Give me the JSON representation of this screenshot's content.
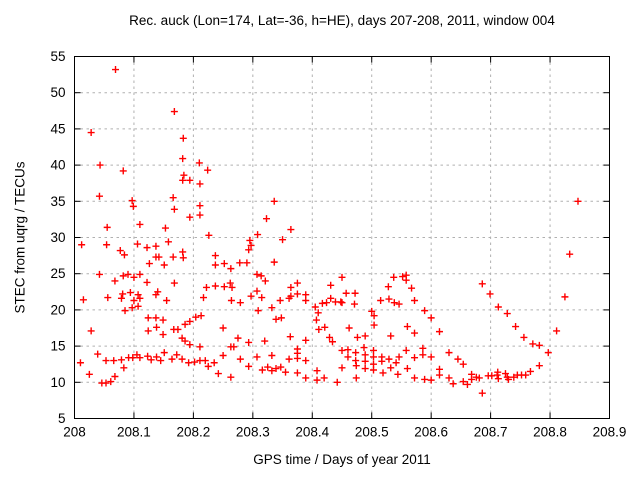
{
  "title": "Rec. auck (Lon=174, Lat=-36, h=HE), days 207-208, 2011, window 004",
  "plot_colors": {
    "background": "#ffffff",
    "frame": "#000000",
    "grid": "#b0b0b0",
    "marker": "#ff0000"
  },
  "chart_data": {
    "type": "scatter",
    "title": "Rec. auck (Lon=174, Lat=-36, h=HE), days 207-208, 2011, window 004",
    "xlabel": "GPS time / Days of year 2011",
    "ylabel": "STEC from uqrg / TECUs",
    "xlim": [
      208,
      208.9
    ],
    "ylim": [
      5,
      55
    ],
    "xticks": [
      208,
      208.1,
      208.2,
      208.3,
      208.4,
      208.5,
      208.6,
      208.7,
      208.8,
      208.9
    ],
    "xtick_labels": [
      "208",
      "208.1",
      "208.2",
      "208.3",
      "208.4",
      "208.5",
      "208.6",
      "208.7",
      "208.8",
      "208.9"
    ],
    "yticks": [
      5,
      10,
      15,
      20,
      25,
      30,
      35,
      40,
      45,
      50,
      55
    ],
    "ytick_labels": [
      "5",
      "10",
      "15",
      "20",
      "25",
      "30",
      "35",
      "40",
      "45",
      "50",
      "55"
    ],
    "grid": true,
    "legend": "none",
    "marker": "plus",
    "series": [
      {
        "name": "STEC",
        "color": "#ff0000",
        "points": [
          [
            208.069,
            53.2
          ],
          [
            208.168,
            47.4
          ],
          [
            208.028,
            44.5
          ],
          [
            208.183,
            43.7
          ],
          [
            208.182,
            40.9
          ],
          [
            208.21,
            40.3
          ],
          [
            208.043,
            40.0
          ],
          [
            208.082,
            39.2
          ],
          [
            208.184,
            38.6
          ],
          [
            208.224,
            39.3
          ],
          [
            208.182,
            37.9
          ],
          [
            208.194,
            37.9
          ],
          [
            208.211,
            37.4
          ],
          [
            208.042,
            35.7
          ],
          [
            208.166,
            35.5
          ],
          [
            208.097,
            35.1
          ],
          [
            208.099,
            34.3
          ],
          [
            208.168,
            33.9
          ],
          [
            208.211,
            34.4
          ],
          [
            208.194,
            32.8
          ],
          [
            208.211,
            33.1
          ],
          [
            208.11,
            31.8
          ],
          [
            208.055,
            31.4
          ],
          [
            208.153,
            31.3
          ],
          [
            208.012,
            29.0
          ],
          [
            208.054,
            29.0
          ],
          [
            208.158,
            29.4
          ],
          [
            208.106,
            29.1
          ],
          [
            208.122,
            28.6
          ],
          [
            208.137,
            28.8
          ],
          [
            208.077,
            28.2
          ],
          [
            208.084,
            27.6
          ],
          [
            208.126,
            26.4
          ],
          [
            208.137,
            27.3
          ],
          [
            208.142,
            27.3
          ],
          [
            208.151,
            26.2
          ],
          [
            208.166,
            27.3
          ],
          [
            208.182,
            28.0
          ],
          [
            208.183,
            27.2
          ],
          [
            208.042,
            24.9
          ],
          [
            208.068,
            24.0
          ],
          [
            208.082,
            24.7
          ],
          [
            208.09,
            24.9
          ],
          [
            208.1,
            24.5
          ],
          [
            208.11,
            24.9
          ],
          [
            208.122,
            23.8
          ],
          [
            208.14,
            22.5
          ],
          [
            208.168,
            23.7
          ],
          [
            208.081,
            22.2
          ],
          [
            208.094,
            22.4
          ],
          [
            208.107,
            22.1
          ],
          [
            208.137,
            22.1
          ],
          [
            208.336,
            35.0
          ],
          [
            208.323,
            32.6
          ],
          [
            208.308,
            30.4
          ],
          [
            208.364,
            31.1
          ],
          [
            208.35,
            29.7
          ],
          [
            208.295,
            29.6
          ],
          [
            208.297,
            28.9
          ],
          [
            208.293,
            28.3
          ],
          [
            208.226,
            30.3
          ],
          [
            208.237,
            27.5
          ],
          [
            208.237,
            26.2
          ],
          [
            208.252,
            26.4
          ],
          [
            208.263,
            25.7
          ],
          [
            208.278,
            26.5
          ],
          [
            208.29,
            26.5
          ],
          [
            208.336,
            26.6
          ],
          [
            208.307,
            24.9
          ],
          [
            208.314,
            24.7
          ],
          [
            208.321,
            24.0
          ],
          [
            208.237,
            23.3
          ],
          [
            208.252,
            23.2
          ],
          [
            208.262,
            23.7
          ],
          [
            208.265,
            23.1
          ],
          [
            208.222,
            23.1
          ],
          [
            208.307,
            22.6
          ],
          [
            208.364,
            23.1
          ],
          [
            208.375,
            23.7
          ],
          [
            208.364,
            21.9
          ],
          [
            208.375,
            22.2
          ],
          [
            208.389,
            22.1
          ],
          [
            208.297,
            21.9
          ],
          [
            208.537,
            24.5
          ],
          [
            208.552,
            24.6
          ],
          [
            208.558,
            24.8
          ],
          [
            208.558,
            24.1
          ],
          [
            208.528,
            23.2
          ],
          [
            208.567,
            23.0
          ],
          [
            208.472,
            22.3
          ],
          [
            208.45,
            24.5
          ],
          [
            208.847,
            35.0
          ],
          [
            208.833,
            27.7
          ],
          [
            208.686,
            23.6
          ],
          [
            208.699,
            22.2
          ],
          [
            208.015,
            21.4
          ],
          [
            208.056,
            21.7
          ],
          [
            208.079,
            21.6
          ],
          [
            208.1,
            21.3
          ],
          [
            208.11,
            21.6
          ],
          [
            208.155,
            21.3
          ],
          [
            208.217,
            21.7
          ],
          [
            208.085,
            19.9
          ],
          [
            208.097,
            20.3
          ],
          [
            208.107,
            20.5
          ],
          [
            208.124,
            18.9
          ],
          [
            208.137,
            18.9
          ],
          [
            208.149,
            18.6
          ],
          [
            208.186,
            18.0
          ],
          [
            208.194,
            18.4
          ],
          [
            208.204,
            19.0
          ],
          [
            208.213,
            19.2
          ],
          [
            208.028,
            17.1
          ],
          [
            208.124,
            17.1
          ],
          [
            208.138,
            17.6
          ],
          [
            208.149,
            16.6
          ],
          [
            208.167,
            17.3
          ],
          [
            208.174,
            17.3
          ],
          [
            208.181,
            16.1
          ],
          [
            208.186,
            15.7
          ],
          [
            208.194,
            15.2
          ],
          [
            208.211,
            14.9
          ],
          [
            208.039,
            13.9
          ],
          [
            208.01,
            12.7
          ],
          [
            208.053,
            13.0
          ],
          [
            208.066,
            13.0
          ],
          [
            208.079,
            13.1
          ],
          [
            208.083,
            12.0
          ],
          [
            208.091,
            13.4
          ],
          [
            208.098,
            13.4
          ],
          [
            208.105,
            13.8
          ],
          [
            208.11,
            13.4
          ],
          [
            208.123,
            13.6
          ],
          [
            208.129,
            13.1
          ],
          [
            208.138,
            13.5
          ],
          [
            208.145,
            13.0
          ],
          [
            208.151,
            14.1
          ],
          [
            208.164,
            13.2
          ],
          [
            208.172,
            13.8
          ],
          [
            208.181,
            13.2
          ],
          [
            208.192,
            12.7
          ],
          [
            208.202,
            12.8
          ],
          [
            208.211,
            13.0
          ],
          [
            208.22,
            13.0
          ],
          [
            208.025,
            11.1
          ],
          [
            208.068,
            10.8
          ],
          [
            208.046,
            9.9
          ],
          [
            208.053,
            9.9
          ],
          [
            208.061,
            10.1
          ],
          [
            208.264,
            21.3
          ],
          [
            208.279,
            21.0
          ],
          [
            208.346,
            21.3
          ],
          [
            208.361,
            21.6
          ],
          [
            208.389,
            21.3
          ],
          [
            208.315,
            21.7
          ],
          [
            208.417,
            20.9
          ],
          [
            208.424,
            21.0
          ],
          [
            208.431,
            21.6
          ],
          [
            208.439,
            21.1
          ],
          [
            208.448,
            21.1
          ],
          [
            208.309,
            19.9
          ],
          [
            208.332,
            20.3
          ],
          [
            208.405,
            20.4
          ],
          [
            208.339,
            18.7
          ],
          [
            208.348,
            18.9
          ],
          [
            208.41,
            19.6
          ],
          [
            208.407,
            18.6
          ],
          [
            208.411,
            17.3
          ],
          [
            208.421,
            17.6
          ],
          [
            208.429,
            16.2
          ],
          [
            208.434,
            15.6
          ],
          [
            208.25,
            17.5
          ],
          [
            208.275,
            16.1
          ],
          [
            208.293,
            15.5
          ],
          [
            208.32,
            15.7
          ],
          [
            208.363,
            16.3
          ],
          [
            208.389,
            15.8
          ],
          [
            208.263,
            14.9
          ],
          [
            208.268,
            14.9
          ],
          [
            208.375,
            14.6
          ],
          [
            208.375,
            14.0
          ],
          [
            208.235,
            12.7
          ],
          [
            208.25,
            13.7
          ],
          [
            208.279,
            13.2
          ],
          [
            208.307,
            13.5
          ],
          [
            208.332,
            13.7
          ],
          [
            208.361,
            13.2
          ],
          [
            208.375,
            13.3
          ],
          [
            208.389,
            13.0
          ],
          [
            208.225,
            12.2
          ],
          [
            208.242,
            11.2
          ],
          [
            208.263,
            10.7
          ],
          [
            208.293,
            12.2
          ],
          [
            208.316,
            11.7
          ],
          [
            208.325,
            12.1
          ],
          [
            208.332,
            11.6
          ],
          [
            208.339,
            11.9
          ],
          [
            208.347,
            12.1
          ],
          [
            208.355,
            11.4
          ],
          [
            208.375,
            11.3
          ],
          [
            208.389,
            10.6
          ],
          [
            208.408,
            11.6
          ],
          [
            208.42,
            10.6
          ],
          [
            208.408,
            10.3
          ],
          [
            208.442,
            10.0
          ],
          [
            208.431,
            23.4
          ],
          [
            208.457,
            22.3
          ],
          [
            208.45,
            21.0
          ],
          [
            208.515,
            21.3
          ],
          [
            208.529,
            21.5
          ],
          [
            208.538,
            21.0
          ],
          [
            208.572,
            21.3
          ],
          [
            208.546,
            20.8
          ],
          [
            208.504,
            19.2
          ],
          [
            208.5,
            19.8
          ],
          [
            208.589,
            19.9
          ],
          [
            208.6,
            18.9
          ],
          [
            208.462,
            17.5
          ],
          [
            208.476,
            16.2
          ],
          [
            208.489,
            16.4
          ],
          [
            208.504,
            17.9
          ],
          [
            208.532,
            16.4
          ],
          [
            208.56,
            17.7
          ],
          [
            208.572,
            16.8
          ],
          [
            208.614,
            17.0
          ],
          [
            208.45,
            14.4
          ],
          [
            208.45,
            12.0
          ],
          [
            208.46,
            14.5
          ],
          [
            208.46,
            13.5
          ],
          [
            208.473,
            14.1
          ],
          [
            208.473,
            13.0
          ],
          [
            208.474,
            12.3
          ],
          [
            208.474,
            10.6
          ],
          [
            208.487,
            14.8
          ],
          [
            208.489,
            13.8
          ],
          [
            208.489,
            12.9
          ],
          [
            208.489,
            11.9
          ],
          [
            208.503,
            14.4
          ],
          [
            208.503,
            13.5
          ],
          [
            208.503,
            12.5
          ],
          [
            208.503,
            11.7
          ],
          [
            208.517,
            13.5
          ],
          [
            208.517,
            12.9
          ],
          [
            208.519,
            11.3
          ],
          [
            208.529,
            13.2
          ],
          [
            208.532,
            12.0
          ],
          [
            208.541,
            12.7
          ],
          [
            208.544,
            11.1
          ],
          [
            208.546,
            13.5
          ],
          [
            208.558,
            14.4
          ],
          [
            208.56,
            11.9
          ],
          [
            208.572,
            13.4
          ],
          [
            208.572,
            10.6
          ],
          [
            208.586,
            14.7
          ],
          [
            208.586,
            13.8
          ],
          [
            208.589,
            10.4
          ],
          [
            208.6,
            13.5
          ],
          [
            208.6,
            10.3
          ],
          [
            208.614,
            11.8
          ],
          [
            208.614,
            11.0
          ],
          [
            208.63,
            14.1
          ],
          [
            208.63,
            10.6
          ],
          [
            208.645,
            13.2
          ],
          [
            208.654,
            12.5
          ],
          [
            208.654,
            10.1
          ],
          [
            208.668,
            11.1
          ],
          [
            208.668,
            10.4
          ],
          [
            208.637,
            9.8
          ],
          [
            208.661,
            9.7
          ],
          [
            208.471,
            20.8
          ],
          [
            208.825,
            21.8
          ],
          [
            208.713,
            20.4
          ],
          [
            208.728,
            19.5
          ],
          [
            208.742,
            17.7
          ],
          [
            208.756,
            16.2
          ],
          [
            208.771,
            15.3
          ],
          [
            208.782,
            15.1
          ],
          [
            208.797,
            14.1
          ],
          [
            208.811,
            17.1
          ],
          [
            208.782,
            12.3
          ],
          [
            208.767,
            11.5
          ],
          [
            208.752,
            11.0
          ],
          [
            208.759,
            11.0
          ],
          [
            208.739,
            10.7
          ],
          [
            208.745,
            11.0
          ],
          [
            208.725,
            11.2
          ],
          [
            208.728,
            10.7
          ],
          [
            208.73,
            10.4
          ],
          [
            208.711,
            11.0
          ],
          [
            208.713,
            10.5
          ],
          [
            208.712,
            11.4
          ],
          [
            208.696,
            10.9
          ],
          [
            208.702,
            10.9
          ],
          [
            208.676,
            10.7
          ],
          [
            208.681,
            10.6
          ],
          [
            208.686,
            8.5
          ]
        ]
      }
    ]
  }
}
